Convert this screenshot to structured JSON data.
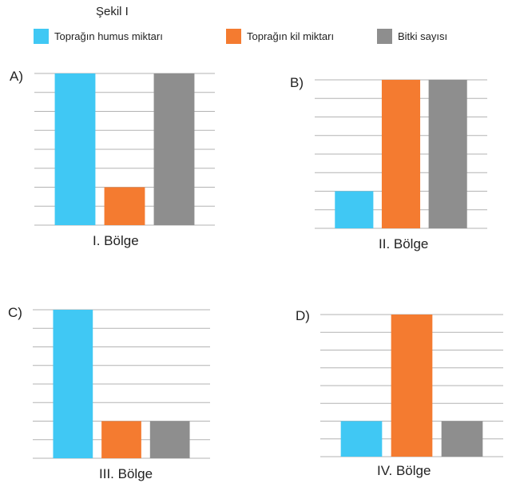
{
  "figure": {
    "title": "Şekil I"
  },
  "colors": {
    "humus": "#40c8f4",
    "clay": "#f47b30",
    "plants": "#8e8e8e",
    "grid": "#b3b3b3"
  },
  "legend": {
    "items": [
      {
        "label": "Toprağın humus miktarı",
        "color": "#40c8f4"
      },
      {
        "label": "Toprağın kil miktarı",
        "color": "#f47b30"
      },
      {
        "label": "Bitki sayısı",
        "color": "#8e8e8e"
      }
    ]
  },
  "chart_data": [
    {
      "type": "bar",
      "option": "A)",
      "region": "I. Bölge",
      "categories": [
        "Toprağın humus miktarı",
        "Toprağın kil miktarı",
        "Bitki sayısı"
      ],
      "values": [
        8,
        2,
        8
      ],
      "ylim": [
        0,
        8
      ],
      "grid": true
    },
    {
      "type": "bar",
      "option": "B)",
      "region": "II. Bölge",
      "categories": [
        "Toprağın humus miktarı",
        "Toprağın kil miktarı",
        "Bitki sayısı"
      ],
      "values": [
        2,
        8,
        8
      ],
      "ylim": [
        0,
        8
      ],
      "grid": true
    },
    {
      "type": "bar",
      "option": "C)",
      "region": "III. Bölge",
      "categories": [
        "Toprağın humus miktarı",
        "Toprağın kil miktarı",
        "Bitki sayısı"
      ],
      "values": [
        8,
        2,
        2
      ],
      "ylim": [
        0,
        8
      ],
      "grid": true
    },
    {
      "type": "bar",
      "option": "D)",
      "region": "IV. Bölge",
      "categories": [
        "Toprağın humus miktarı",
        "Toprağın kil miktarı",
        "Bitki sayısı"
      ],
      "values": [
        2,
        8,
        2
      ],
      "ylim": [
        0,
        8
      ],
      "grid": true
    }
  ]
}
